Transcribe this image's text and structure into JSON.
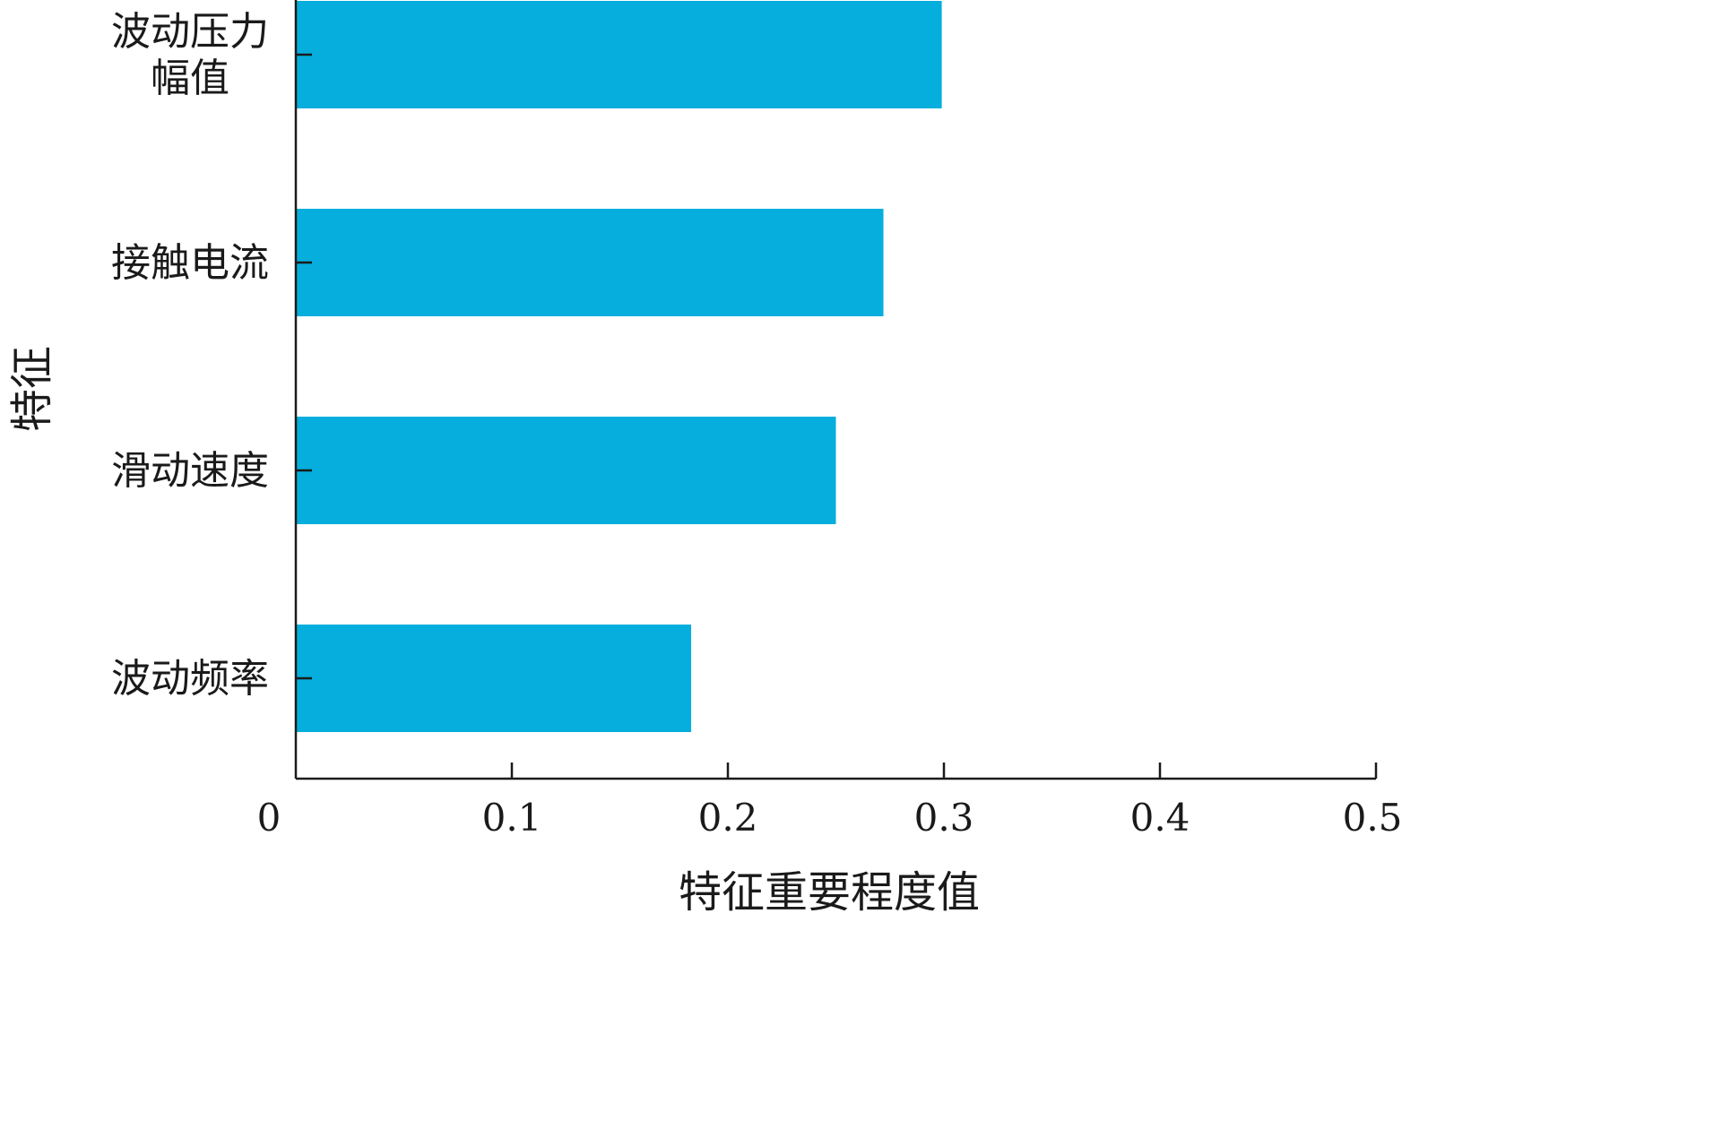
{
  "chart_data": {
    "type": "bar",
    "orientation": "horizontal",
    "categories": [
      [
        "波动压力",
        "幅值"
      ],
      [
        "接触电流"
      ],
      [
        "滑动速度"
      ],
      [
        "波动频率"
      ]
    ],
    "values": [
      0.299,
      0.272,
      0.25,
      0.183
    ],
    "xlim": [
      0,
      0.5
    ],
    "xticks": [
      "0",
      "0.1",
      "0.2",
      "0.3",
      "0.4",
      "0.5"
    ],
    "xlabel": "特征重要程度值",
    "ylabel": "特征",
    "bar_color": "#05AEDC",
    "grid": false,
    "legend": "none"
  }
}
